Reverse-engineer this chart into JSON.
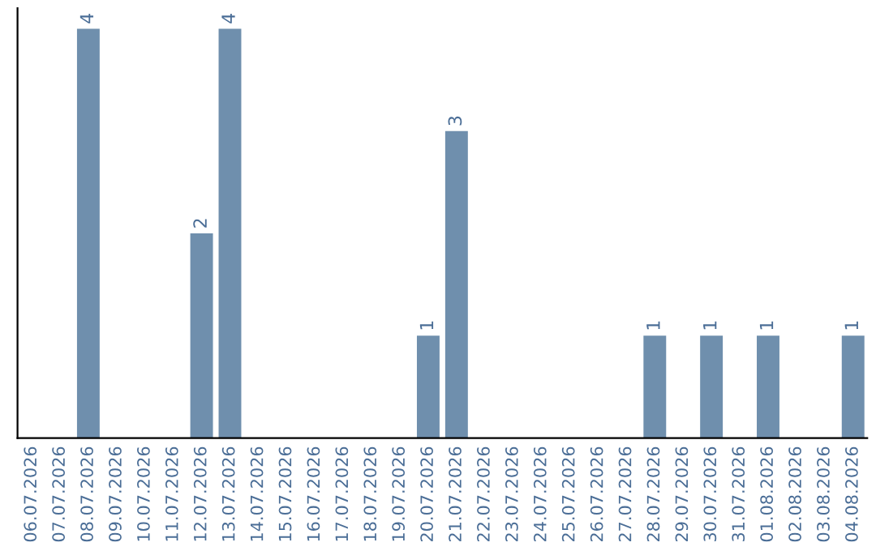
{
  "chart_data": {
    "type": "bar",
    "categories": [
      "06.07.2026",
      "07.07.2026",
      "08.07.2026",
      "09.07.2026",
      "10.07.2026",
      "11.07.2026",
      "12.07.2026",
      "13.07.2026",
      "14.07.2026",
      "15.07.2026",
      "16.07.2026",
      "17.07.2026",
      "18.07.2026",
      "19.07.2026",
      "20.07.2026",
      "21.07.2026",
      "22.07.2026",
      "23.07.2026",
      "24.07.2026",
      "25.07.2026",
      "26.07.2026",
      "27.07.2026",
      "28.07.2026",
      "29.07.2026",
      "30.07.2026",
      "31.07.2026",
      "01.08.2026",
      "02.08.2026",
      "03.08.2026",
      "04.08.2026"
    ],
    "values": [
      0,
      0,
      4,
      0,
      0,
      0,
      2,
      4,
      0,
      0,
      0,
      0,
      0,
      0,
      1,
      3,
      0,
      0,
      0,
      0,
      0,
      0,
      1,
      0,
      1,
      0,
      1,
      0,
      0,
      1
    ],
    "value_labels": [
      null,
      null,
      "4",
      null,
      null,
      null,
      "2",
      "4",
      null,
      null,
      null,
      null,
      null,
      null,
      "1",
      "3",
      null,
      null,
      null,
      null,
      null,
      null,
      "1",
      null,
      "1",
      null,
      "1",
      null,
      null,
      "1"
    ],
    "color": "#6f8fad",
    "grid": false,
    "legend": false
  }
}
